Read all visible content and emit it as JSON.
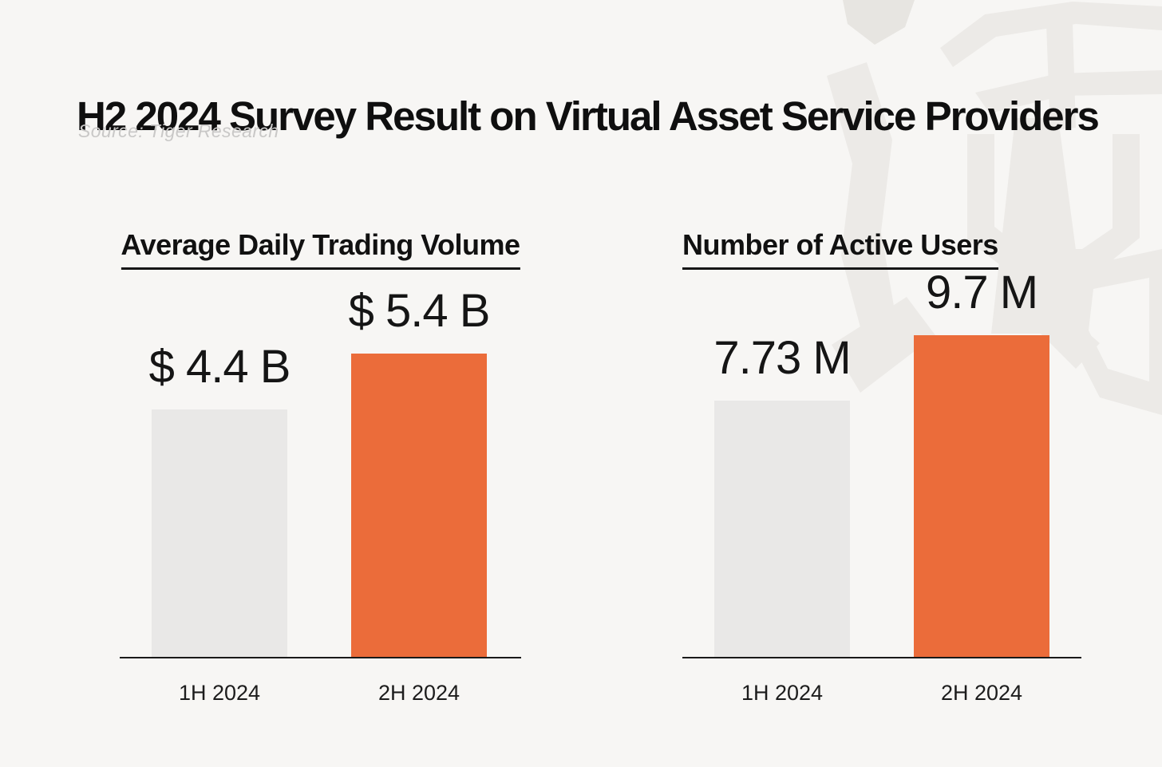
{
  "page": {
    "title": "H2 2024 Survey Result on Virtual Asset Service Providers",
    "source": "Source: Tiger Research"
  },
  "watermark": {
    "icon": "tiger-logo-watermark"
  },
  "colors": {
    "background": "#F7F6F4",
    "bar_gray": "#E9E8E7",
    "bar_orange": "#EB6C3A",
    "axis_line": "#1A1A1A",
    "title_text": "#0F0F0F",
    "source_text": "#C9C8C7",
    "watermark_gray": "#ECEAE7"
  },
  "chart_data": [
    {
      "type": "bar",
      "title": "Average Daily Trading Volume",
      "categories": [
        "1H 2024",
        "2H 2024"
      ],
      "values": [
        4.4,
        5.4
      ],
      "value_labels": [
        "$ 4.4 B",
        "$ 5.4 B"
      ],
      "unit": "billion USD",
      "series_colors": [
        "#E9E8E7",
        "#EB6C3A"
      ],
      "ylim": [
        0,
        5.4
      ],
      "grid": false,
      "legend_position": "none"
    },
    {
      "type": "bar",
      "title": "Number of Active Users",
      "categories": [
        "1H 2024",
        "2H 2024"
      ],
      "values": [
        7.73,
        9.7
      ],
      "value_labels": [
        "7.73 M",
        "9.7 M"
      ],
      "unit": "million users",
      "series_colors": [
        "#E9E8E7",
        "#EB6C3A"
      ],
      "ylim": [
        0,
        9.7
      ],
      "grid": false,
      "legend_position": "none"
    }
  ]
}
